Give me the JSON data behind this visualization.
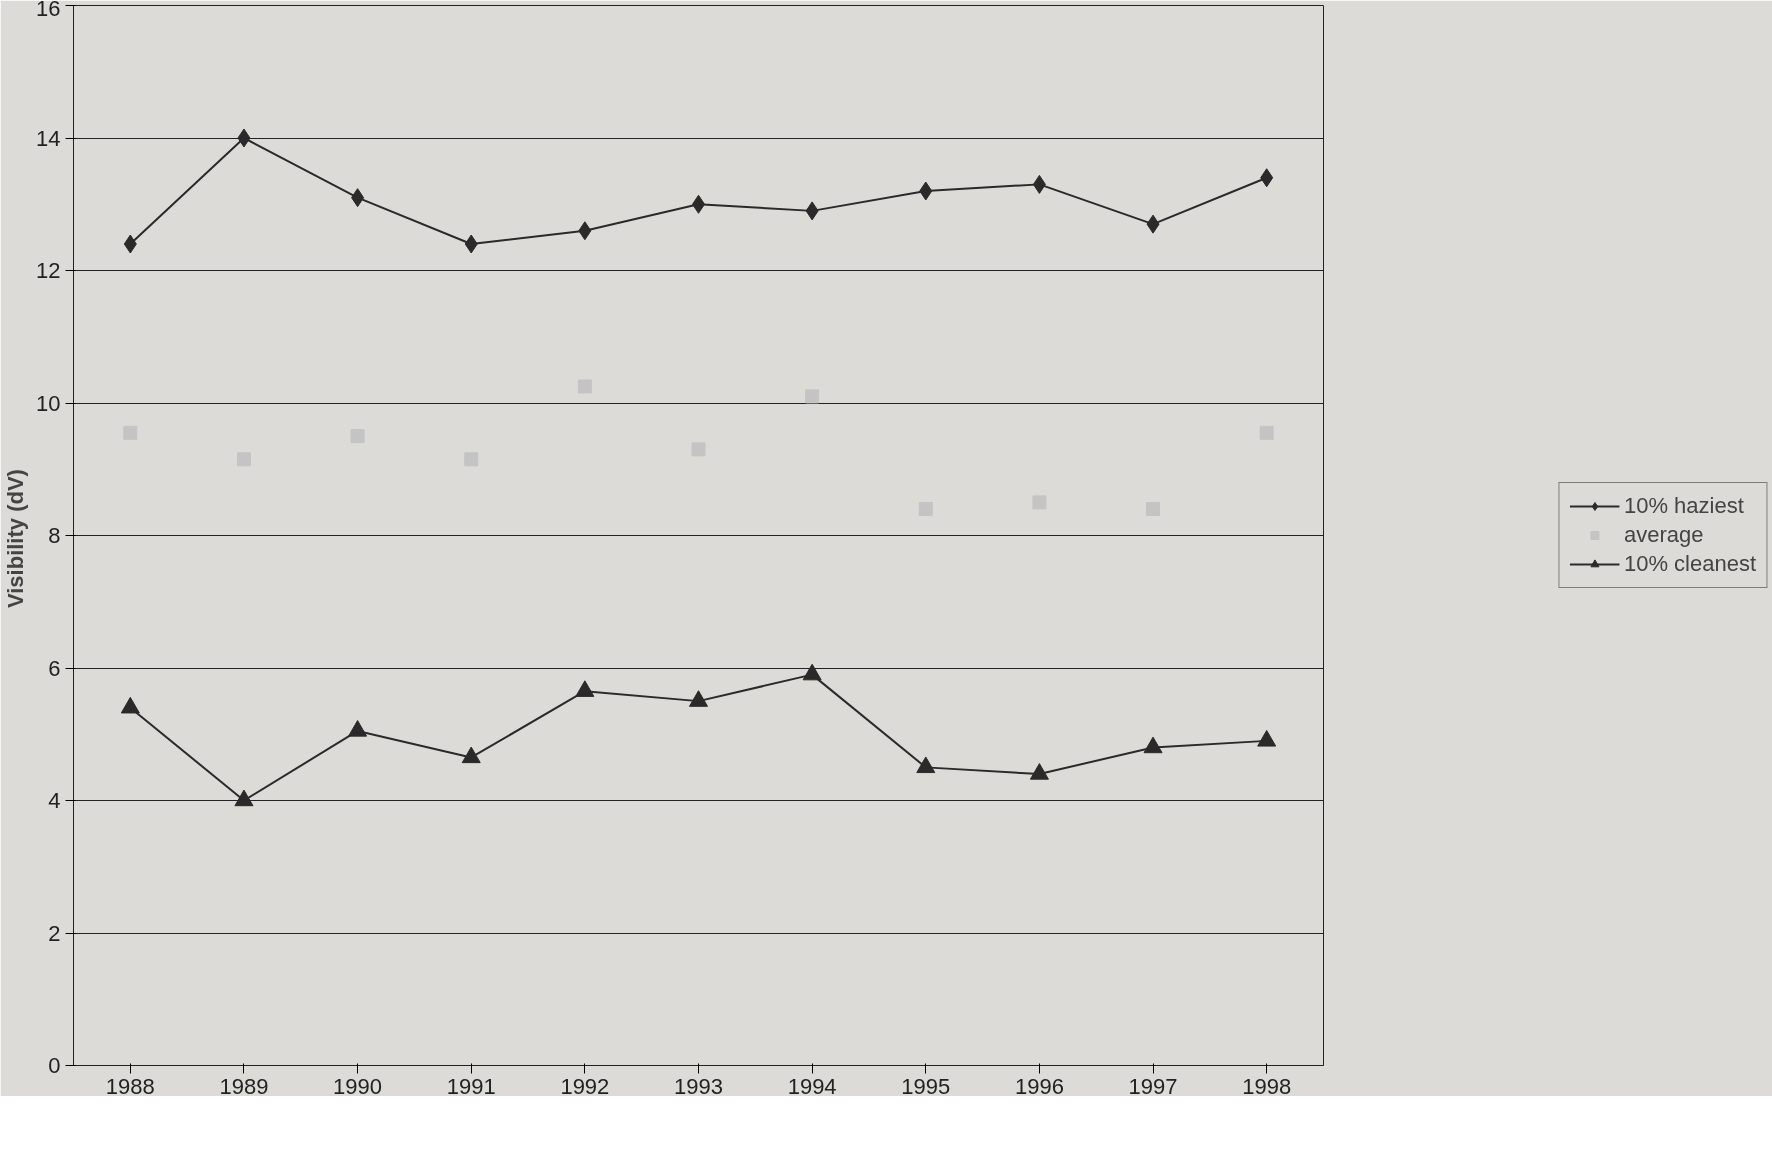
{
  "chart_data": {
    "type": "line",
    "ylabel": "Visibility  (dV)",
    "categories": [
      "1988",
      "1989",
      "1990",
      "1991",
      "1992",
      "1993",
      "1994",
      "1995",
      "1996",
      "1997",
      "1998"
    ],
    "series": [
      {
        "name": "10% haziest",
        "color": "#2a2a2a",
        "marker": "diamond",
        "values": [
          12.4,
          14.0,
          13.1,
          12.4,
          12.6,
          13.0,
          12.9,
          13.2,
          13.3,
          12.7,
          13.4
        ]
      },
      {
        "name": "average",
        "color": "#c4c4c4",
        "type": "scatter",
        "marker": "square",
        "values": [
          9.55,
          9.15,
          9.5,
          9.15,
          10.25,
          9.3,
          10.1,
          8.4,
          8.5,
          8.4,
          9.55
        ]
      },
      {
        "name": "10% cleanest",
        "color": "#2a2a2a",
        "marker": "triangle",
        "values": [
          5.4,
          4.0,
          5.05,
          4.65,
          5.65,
          5.5,
          5.9,
          4.5,
          4.4,
          4.8,
          4.9
        ]
      }
    ],
    "ylim": [
      0,
      16
    ],
    "yticks": [
      0,
      2,
      4,
      6,
      8,
      10,
      12,
      14,
      16
    ],
    "grid": "y",
    "legend": "right"
  }
}
